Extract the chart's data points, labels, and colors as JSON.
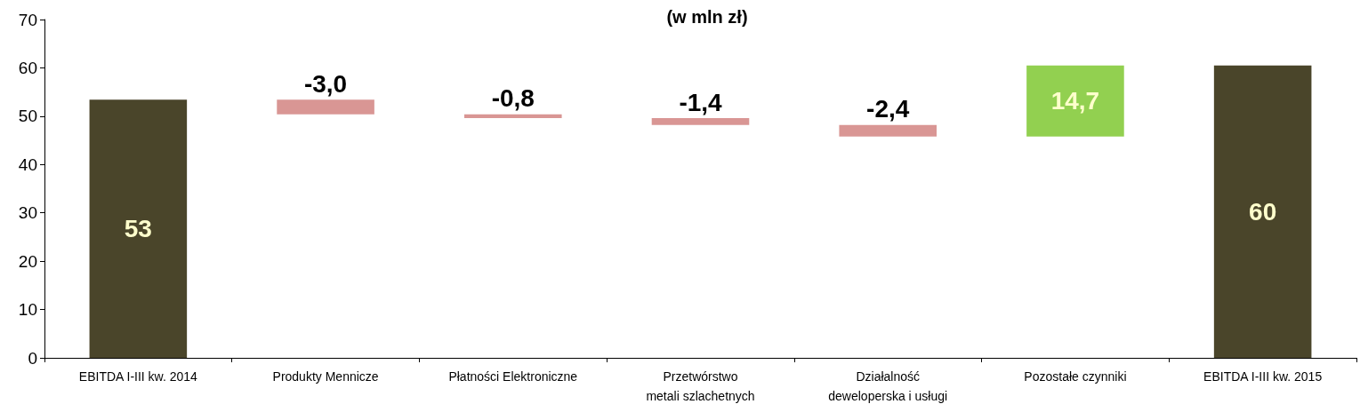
{
  "chart_data": {
    "type": "bar",
    "title": "(w mln zł)",
    "categories": [
      "EBITDA I-III kw. 2014",
      "Produkty Mennicze",
      "Płatności Elektroniczne",
      "Przetwórstwo\nmetali szlachetnych",
      "Działalność\ndeweloperska i usługi",
      "Pozostałe czynniki",
      "EBITDA I-III kw. 2015"
    ],
    "values": [
      53.4,
      -3.0,
      -0.8,
      -1.4,
      -2.4,
      14.7,
      60.5
    ],
    "base": [
      0,
      53.4,
      50.4,
      49.6,
      48.2,
      45.8,
      0
    ],
    "value_labels": [
      "53",
      "-3,0",
      "-0,8",
      "-1,4",
      "-2,4",
      "14,7",
      "60"
    ],
    "colors": [
      "#4a452a",
      "#d99694",
      "#d99694",
      "#d99694",
      "#d99694",
      "#92d050",
      "#4a452a"
    ],
    "ylim": [
      0,
      70
    ],
    "yticks": [
      0,
      10,
      20,
      30,
      40,
      50,
      60,
      70
    ],
    "grid": false
  }
}
